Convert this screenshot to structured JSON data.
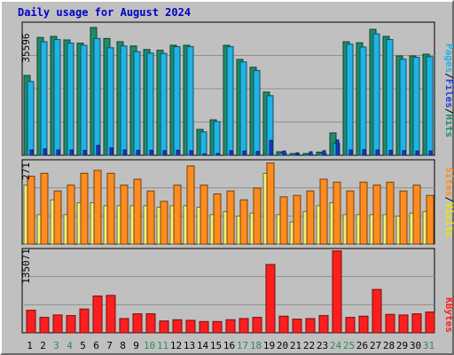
{
  "chart_data": {
    "type": "bar",
    "title": "Daily usage for August 2024",
    "categories": [
      "1",
      "2",
      "3",
      "4",
      "5",
      "6",
      "7",
      "8",
      "9",
      "10",
      "11",
      "12",
      "13",
      "14",
      "15",
      "16",
      "17",
      "18",
      "19",
      "20",
      "21",
      "22",
      "23",
      "24",
      "25",
      "26",
      "27",
      "28",
      "29",
      "30",
      "31"
    ],
    "weekend_days": [
      "3",
      "4",
      "10",
      "11",
      "17",
      "18",
      "24",
      "25",
      "31"
    ],
    "panels": [
      {
        "id": "top",
        "max_label": "35596",
        "ylim": [
          0,
          37000
        ],
        "series": [
          {
            "name": "Hits",
            "color": "#1e8c6a",
            "values": [
              22500,
              33200,
              33500,
              32500,
              31600,
              36000,
              32900,
              32000,
              30800,
              29800,
              29600,
              31000,
              31000,
              7300,
              10000,
              31000,
              27000,
              24800,
              17800,
              1000,
              500,
              500,
              900,
              6300,
              32000,
              31700,
              35500,
              33500,
              28000,
              28000,
              28500
            ]
          },
          {
            "name": "Files",
            "color": "#1eb4e6",
            "values": [
              20800,
              32000,
              32600,
              31600,
              31000,
              32900,
              30300,
              30800,
              29200,
              28800,
              28700,
              30600,
              30600,
              6600,
              9500,
              30600,
              26300,
              23900,
              16800,
              600,
              300,
              300,
              500,
              3400,
              31300,
              30500,
              34200,
              32600,
              27100,
              27600,
              27800
            ]
          },
          {
            "name": "Pages",
            "color": "#1e3ce6",
            "values": [
              1500,
              1800,
              1500,
              1500,
              1400,
              2800,
              2100,
              1500,
              1400,
              1400,
              1300,
              1400,
              1300,
              400,
              500,
              1300,
              1200,
              1100,
              4200,
              1200,
              700,
              1000,
              1300,
              4300,
              1500,
              1600,
              1500,
              1400,
              1300,
              1200,
              1200
            ]
          }
        ]
      },
      {
        "id": "middle",
        "max_label": "271",
        "ylim": [
          0,
          280
        ],
        "series": [
          {
            "name": "Visits",
            "color": "#f0f078",
            "values": [
              200,
              100,
              150,
              100,
              140,
              140,
              130,
              130,
              130,
              130,
              125,
              130,
              130,
              125,
              100,
              110,
              95,
              105,
              240,
              100,
              75,
              110,
              130,
              140,
              100,
              100,
              100,
              100,
              95,
              105,
              110
            ]
          },
          {
            "name": "Sites",
            "color": "#ff8c1e",
            "values": [
              230,
              240,
              180,
              200,
              240,
              250,
              240,
              200,
              220,
              180,
              145,
              200,
              265,
              200,
              170,
              180,
              150,
              190,
              275,
              160,
              165,
              180,
              220,
              210,
              180,
              210,
              200,
              210,
              180,
              200,
              165
            ]
          }
        ]
      },
      {
        "id": "bottom",
        "max_label": "135071",
        "ylim": [
          0,
          139000
        ],
        "series": [
          {
            "name": "KBytes",
            "color": "#ff1e1e",
            "values": [
              38000,
              26000,
              30000,
              29000,
              40000,
              62000,
              63000,
              24000,
              32000,
              32000,
              20000,
              22000,
              21000,
              19000,
              19000,
              22000,
              24000,
              26000,
              115000,
              28000,
              23000,
              24000,
              29000,
              138000,
              26000,
              28000,
              73000,
              31000,
              30000,
              32000,
              35000
            ]
          }
        ]
      }
    ]
  },
  "legend": {
    "top": {
      "pages": "Pages",
      "sep1": "/",
      "files": "Files",
      "sep2": "/",
      "hits": "Hits"
    },
    "middle": {
      "sites": "Sites",
      "sep": "/",
      "visits": "Visits"
    },
    "bottom": {
      "kbytes": "KBytes"
    }
  },
  "colors": {
    "background": "#c0c0c0",
    "plot": "#c0c0c0",
    "grid": "#909090",
    "weekday_label": "#000000",
    "weekend_label": "#2e8b57",
    "title": "#0000c8"
  }
}
